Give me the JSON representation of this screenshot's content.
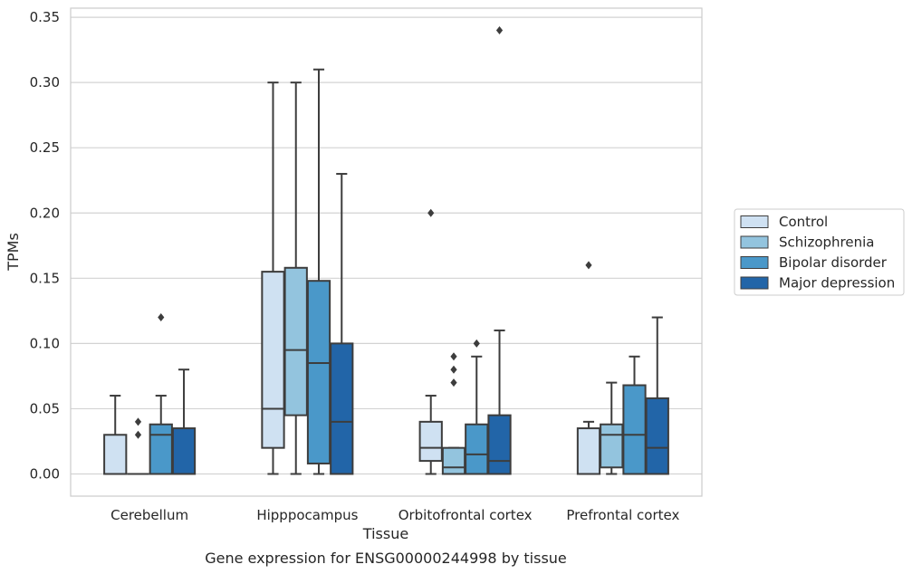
{
  "caption": "Gene expression for ENSG00000244998 by tissue",
  "chart_data": {
    "type": "box",
    "xlabel": "Tissue",
    "ylabel": "TPMs",
    "ylim": [
      -0.017,
      0.357
    ],
    "yticks": [
      "0.00",
      "0.05",
      "0.10",
      "0.15",
      "0.20",
      "0.25",
      "0.30",
      "0.35"
    ],
    "ytick_values": [
      0.0,
      0.05,
      0.1,
      0.15,
      0.2,
      0.25,
      0.3,
      0.35
    ],
    "grid": "horizontal",
    "legend_placement": "right",
    "categories": [
      "Cerebellum",
      "Hipppocampus",
      "Orbitofrontal cortex",
      "Prefrontal cortex"
    ],
    "series": [
      {
        "name": "Control",
        "color": "#cfe1f2",
        "boxes": [
          {
            "whislo": 0.0,
            "q1": 0.0,
            "med": 0.0,
            "q3": 0.03,
            "whishi": 0.06,
            "fliers": []
          },
          {
            "whislo": 0.0,
            "q1": 0.02,
            "med": 0.05,
            "q3": 0.155,
            "whishi": 0.3,
            "fliers": []
          },
          {
            "whislo": 0.0,
            "q1": 0.01,
            "med": 0.02,
            "q3": 0.04,
            "whishi": 0.06,
            "fliers": [
              0.2
            ]
          },
          {
            "whislo": 0.0,
            "q1": 0.0,
            "med": 0.0,
            "q3": 0.035,
            "whishi": 0.04,
            "fliers": [
              0.16
            ]
          }
        ]
      },
      {
        "name": "Schizophrenia",
        "color": "#93c4de",
        "boxes": [
          {
            "whislo": 0.0,
            "q1": 0.0,
            "med": 0.0,
            "q3": 0.0,
            "whishi": 0.0,
            "fliers": [
              0.03,
              0.04
            ]
          },
          {
            "whislo": 0.0,
            "q1": 0.045,
            "med": 0.095,
            "q3": 0.158,
            "whishi": 0.3,
            "fliers": []
          },
          {
            "whislo": 0.0,
            "q1": 0.0,
            "med": 0.005,
            "q3": 0.02,
            "whishi": 0.02,
            "fliers": [
              0.07,
              0.08,
              0.09
            ]
          },
          {
            "whislo": 0.0,
            "q1": 0.005,
            "med": 0.03,
            "q3": 0.038,
            "whishi": 0.07,
            "fliers": []
          }
        ]
      },
      {
        "name": "Bipolar disorder",
        "color": "#4a98c9",
        "boxes": [
          {
            "whislo": 0.0,
            "q1": 0.0,
            "med": 0.03,
            "q3": 0.038,
            "whishi": 0.06,
            "fliers": [
              0.12
            ]
          },
          {
            "whislo": 0.0,
            "q1": 0.008,
            "med": 0.085,
            "q3": 0.148,
            "whishi": 0.31,
            "fliers": []
          },
          {
            "whislo": 0.0,
            "q1": 0.0,
            "med": 0.015,
            "q3": 0.038,
            "whishi": 0.09,
            "fliers": [
              0.1
            ]
          },
          {
            "whislo": 0.0,
            "q1": 0.0,
            "med": 0.03,
            "q3": 0.068,
            "whishi": 0.09,
            "fliers": []
          }
        ]
      },
      {
        "name": "Major depression",
        "color": "#2265a8",
        "boxes": [
          {
            "whislo": 0.0,
            "q1": 0.0,
            "med": 0.0,
            "q3": 0.035,
            "whishi": 0.08,
            "fliers": []
          },
          {
            "whislo": 0.0,
            "q1": 0.0,
            "med": 0.04,
            "q3": 0.1,
            "whishi": 0.23,
            "fliers": []
          },
          {
            "whislo": 0.0,
            "q1": 0.0,
            "med": 0.01,
            "q3": 0.045,
            "whishi": 0.11,
            "fliers": [
              0.34
            ]
          },
          {
            "whislo": 0.0,
            "q1": 0.0,
            "med": 0.02,
            "q3": 0.058,
            "whishi": 0.12,
            "fliers": []
          }
        ]
      }
    ]
  }
}
